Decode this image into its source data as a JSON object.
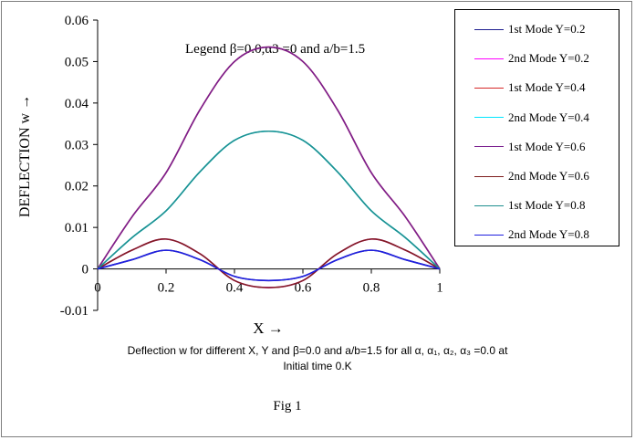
{
  "chart_data": {
    "type": "line",
    "title": "Legend β=0.0,α3 =0 and a/b=1.5",
    "xlabel": "X →",
    "ylabel": "DEFLECTION w →",
    "xlim": [
      0,
      1
    ],
    "ylim": [
      -0.01,
      0.06
    ],
    "xticks": [
      "0",
      "0.2",
      "0.4",
      "0.6",
      "0.8",
      "1"
    ],
    "yticks": [
      "0.06",
      "0.05",
      "0.04",
      "0.03",
      "0.02",
      "0.01",
      "0",
      "-0.01"
    ],
    "x": [
      0,
      0.1,
      0.2,
      0.3,
      0.4,
      0.5,
      0.6,
      0.7,
      0.8,
      0.9,
      1.0
    ],
    "series": [
      {
        "name": "1st Mode Y=0.2",
        "color": "#1f1f8f",
        "values": [
          0,
          0.0022,
          0.0045,
          0.0022,
          -0.0018,
          -0.0028,
          -0.0018,
          0.0022,
          0.0045,
          0.0022,
          0
        ]
      },
      {
        "name": "2nd Mode Y=0.2",
        "color": "#ff00ff",
        "values": [
          0,
          0.0045,
          0.0072,
          0.0036,
          -0.0028,
          -0.0045,
          -0.0028,
          0.0036,
          0.0072,
          0.0045,
          0
        ]
      },
      {
        "name": "1st Mode Y=0.4",
        "color": "#d62728",
        "values": [
          0,
          0.0125,
          0.0232,
          0.0385,
          0.05,
          0.0535,
          0.05,
          0.0385,
          0.0232,
          0.0125,
          0
        ]
      },
      {
        "name": "2nd Mode Y=0.4",
        "color": "#00e5ff",
        "values": [
          0,
          0.0075,
          0.014,
          0.0235,
          0.031,
          0.0332,
          0.031,
          0.0235,
          0.014,
          0.0075,
          0
        ]
      },
      {
        "name": "1st Mode Y=0.6",
        "color": "#7b1f8f",
        "values": [
          0,
          0.0125,
          0.0232,
          0.0385,
          0.05,
          0.0535,
          0.05,
          0.0385,
          0.0232,
          0.0125,
          0
        ]
      },
      {
        "name": "2nd Mode Y=0.6",
        "color": "#7f1f1f",
        "values": [
          0,
          0.0045,
          0.0072,
          0.0036,
          -0.0028,
          -0.0045,
          -0.0028,
          0.0036,
          0.0072,
          0.0045,
          0
        ]
      },
      {
        "name": "1st Mode Y=0.8",
        "color": "#1f8f8f",
        "values": [
          0,
          0.0075,
          0.014,
          0.0235,
          0.031,
          0.0332,
          0.031,
          0.0235,
          0.014,
          0.0075,
          0
        ]
      },
      {
        "name": "2nd Mode Y=0.8",
        "color": "#1f1fdf",
        "values": [
          0,
          0.0022,
          0.0045,
          0.0022,
          -0.0018,
          -0.0028,
          -0.0018,
          0.0022,
          0.0045,
          0.0022,
          0
        ]
      }
    ],
    "legend_position": "right",
    "grid": false
  },
  "caption_line1": "Deflection w for different X, Y and β=0.0 and a/b=1.5 for all α, α₁, α₂, α₃ =0.0 at",
  "caption_line2": "Initial time 0.K",
  "figure_label": "Fig 1"
}
